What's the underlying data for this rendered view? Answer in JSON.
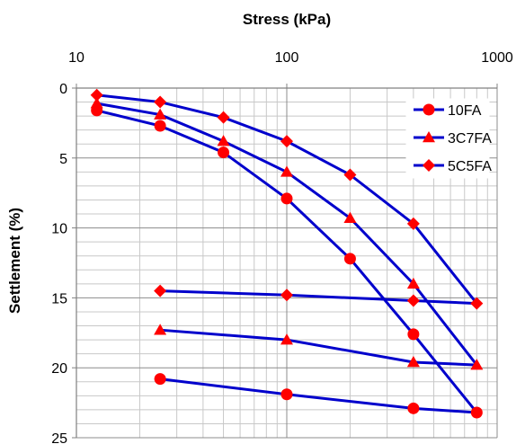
{
  "chart_data": {
    "type": "line",
    "xlabel": "Stress (kPa)",
    "ylabel": "Settlement (%)",
    "x_scale": "log",
    "x_axis_position": "top",
    "y_inverted": true,
    "xlim": [
      10,
      1000
    ],
    "ylim": [
      0,
      25
    ],
    "x_ticks": [
      {
        "value": 10,
        "label": "10"
      },
      {
        "value": 100,
        "label": "100"
      },
      {
        "value": 1000,
        "label": "1000"
      }
    ],
    "y_ticks": [
      {
        "value": 0,
        "label": "0"
      },
      {
        "value": 5,
        "label": "5"
      },
      {
        "value": 10,
        "label": "10"
      },
      {
        "value": 15,
        "label": "15"
      },
      {
        "value": 20,
        "label": "20"
      },
      {
        "value": 25,
        "label": "25"
      }
    ],
    "grid": true,
    "legend_position": "top-right",
    "line_color": "#0000CC",
    "marker_color": "#FF0000",
    "series": [
      {
        "name": "10FA",
        "marker": "circle",
        "loading": [
          {
            "x": 12.5,
            "y": 1.6
          },
          {
            "x": 25,
            "y": 2.7
          },
          {
            "x": 50,
            "y": 4.6
          },
          {
            "x": 100,
            "y": 7.9
          },
          {
            "x": 200,
            "y": 12.2
          },
          {
            "x": 400,
            "y": 17.6
          },
          {
            "x": 800,
            "y": 23.2
          }
        ],
        "unloading": [
          {
            "x": 800,
            "y": 23.2
          },
          {
            "x": 400,
            "y": 22.9
          },
          {
            "x": 100,
            "y": 21.9
          },
          {
            "x": 25,
            "y": 20.8
          }
        ]
      },
      {
        "name": "3C7FA",
        "marker": "triangle",
        "loading": [
          {
            "x": 12.5,
            "y": 1.1
          },
          {
            "x": 25,
            "y": 1.9
          },
          {
            "x": 50,
            "y": 3.8
          },
          {
            "x": 100,
            "y": 6.0
          },
          {
            "x": 200,
            "y": 9.3
          },
          {
            "x": 400,
            "y": 14.0
          },
          {
            "x": 800,
            "y": 19.8
          }
        ],
        "unloading": [
          {
            "x": 800,
            "y": 19.8
          },
          {
            "x": 400,
            "y": 19.6
          },
          {
            "x": 100,
            "y": 18.0
          },
          {
            "x": 25,
            "y": 17.3
          }
        ]
      },
      {
        "name": "5C5FA",
        "marker": "diamond",
        "loading": [
          {
            "x": 12.5,
            "y": 0.5
          },
          {
            "x": 25,
            "y": 1.0
          },
          {
            "x": 50,
            "y": 2.1
          },
          {
            "x": 100,
            "y": 3.8
          },
          {
            "x": 200,
            "y": 6.2
          },
          {
            "x": 400,
            "y": 9.7
          },
          {
            "x": 800,
            "y": 15.4
          }
        ],
        "unloading": [
          {
            "x": 800,
            "y": 15.4
          },
          {
            "x": 400,
            "y": 15.2
          },
          {
            "x": 100,
            "y": 14.8
          },
          {
            "x": 25,
            "y": 14.5
          }
        ]
      }
    ]
  }
}
